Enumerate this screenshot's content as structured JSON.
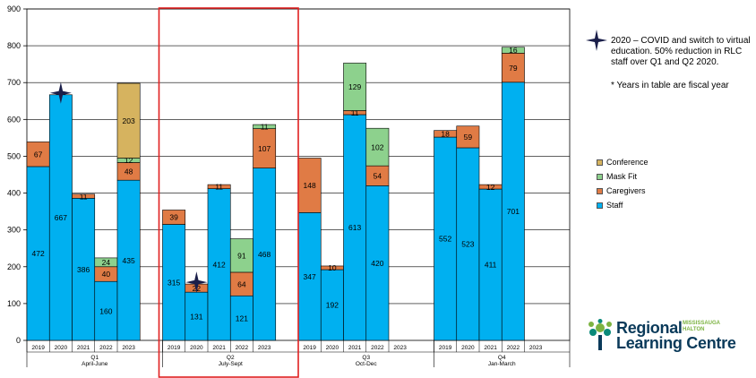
{
  "notes": {
    "covid": "2020 – COVID and switch to virtual education. 50% reduction in RLC staff over Q1 and Q2 2020.",
    "fiscal": "* Years in table are fiscal year"
  },
  "logo": {
    "line1": "Regional",
    "line2": "Learning Centre",
    "sub1": "MISSISSAUGA",
    "sub2": "HALTON",
    "icon": "tree-icon"
  },
  "colors": {
    "staff": "#00B0F0",
    "caregivers": "#E07B45",
    "mask_fit": "#8DD18D",
    "conference": "#D6B35F",
    "highlight_box": "#E02020"
  },
  "chart_data": {
    "type": "bar",
    "stacked": true,
    "ylim": [
      0,
      900
    ],
    "yticks": [
      0,
      100,
      200,
      300,
      400,
      500,
      600,
      700,
      800,
      900
    ],
    "grid": true,
    "legend_position": "right",
    "legend": [
      "Conference",
      "Mask Fit",
      "Caregivers",
      "Staff"
    ],
    "stack_order": [
      "Staff",
      "Caregivers",
      "Mask Fit",
      "Conference"
    ],
    "series_colors": {
      "Staff": "#00B0F0",
      "Caregivers": "#E07B45",
      "Mask Fit": "#8DD18D",
      "Conference": "#D6B35F"
    },
    "groups": [
      {
        "name": "Q1",
        "sub": "April-June",
        "years": [
          "2019",
          "2020",
          "2021",
          "2022",
          "2023"
        ],
        "values": {
          "Staff": [
            472,
            667,
            386,
            160,
            435
          ],
          "Caregivers": [
            67,
            0,
            11,
            40,
            48
          ],
          "Mask Fit": [
            0,
            0,
            0,
            24,
            12
          ],
          "Conference": [
            0,
            0,
            0,
            0,
            203
          ]
        },
        "labels": {
          "Staff": [
            "472",
            "667",
            "386",
            "160",
            "435"
          ],
          "Caregivers": [
            "67",
            "",
            "11",
            "40",
            "48"
          ],
          "Mask Fit": [
            "",
            "",
            "",
            "24",
            "12"
          ],
          "Conference": [
            "",
            "",
            "",
            "",
            "203"
          ]
        }
      },
      {
        "name": "Q2",
        "sub": "July-Sept",
        "years": [
          "2019",
          "2020",
          "2021",
          "2022",
          "2023"
        ],
        "values": {
          "Staff": [
            315,
            131,
            412,
            121,
            468
          ],
          "Caregivers": [
            39,
            22,
            11,
            64,
            107
          ],
          "Mask Fit": [
            0,
            0,
            0,
            91,
            11
          ],
          "Conference": [
            0,
            0,
            0,
            0,
            0
          ]
        },
        "labels": {
          "Staff": [
            "315",
            "131",
            "412",
            "121",
            "468"
          ],
          "Caregivers": [
            "39",
            "22",
            "11",
            "64",
            "107"
          ],
          "Mask Fit": [
            "",
            "",
            "",
            "91",
            "11"
          ],
          "Conference": [
            "",
            "",
            "",
            "",
            ""
          ]
        }
      },
      {
        "name": "Q3",
        "sub": "Oct-Dec",
        "years": [
          "2019",
          "2020",
          "2021",
          "2022",
          "2023"
        ],
        "values": {
          "Staff": [
            347,
            192,
            613,
            420,
            0
          ],
          "Caregivers": [
            148,
            10,
            11,
            54,
            0
          ],
          "Mask Fit": [
            0,
            0,
            129,
            102,
            0
          ],
          "Conference": [
            0,
            0,
            0,
            0,
            0
          ]
        },
        "labels": {
          "Staff": [
            "347",
            "192",
            "613",
            "420",
            ""
          ],
          "Caregivers": [
            "148",
            "10",
            "11",
            "54",
            ""
          ],
          "Mask Fit": [
            "",
            "",
            "129",
            "102",
            ""
          ],
          "Conference": [
            "",
            "",
            "",
            "",
            ""
          ]
        }
      },
      {
        "name": "Q4",
        "sub": "Jan-March",
        "years": [
          "2019",
          "2020",
          "2021",
          "2022",
          "2023"
        ],
        "values": {
          "Staff": [
            552,
            523,
            411,
            701,
            0
          ],
          "Caregivers": [
            18,
            59,
            12,
            79,
            0
          ],
          "Mask Fit": [
            0,
            0,
            0,
            16,
            0
          ],
          "Conference": [
            0,
            0,
            0,
            0,
            0
          ]
        },
        "labels": {
          "Staff": [
            "552",
            "523",
            "411",
            "701",
            ""
          ],
          "Caregivers": [
            "18",
            "59",
            "12",
            "79",
            ""
          ],
          "Mask Fit": [
            "",
            "",
            "",
            "16",
            ""
          ],
          "Conference": [
            "",
            "",
            "",
            "",
            ""
          ]
        }
      }
    ],
    "star_markers": [
      {
        "group": 0,
        "year": "2020"
      },
      {
        "group": 1,
        "year": "2020"
      }
    ],
    "highlight_group": 1
  }
}
